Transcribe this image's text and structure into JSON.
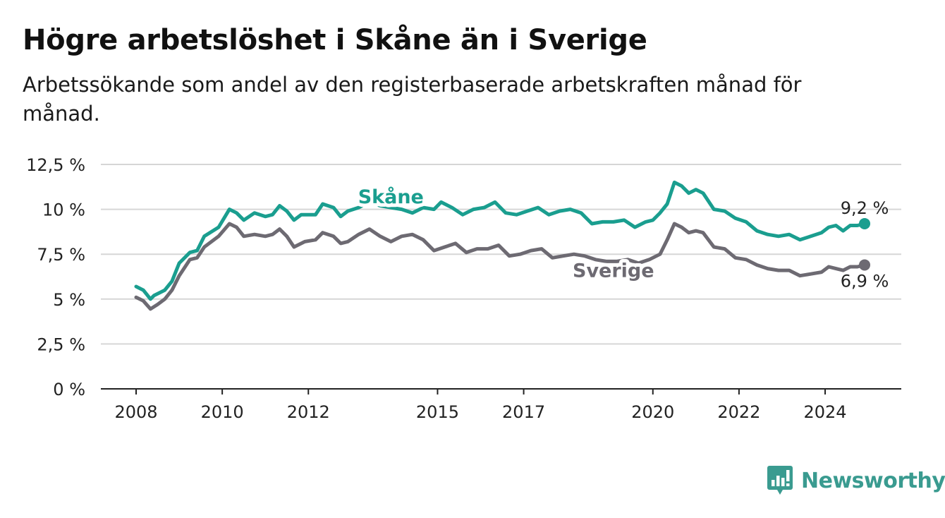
{
  "header": {
    "title": "Högre arbetslöshet i Skåne än i Sverige",
    "subtitle": "Arbetssökande som andel av den registerbaserade arbetskraften månad för månad."
  },
  "brand": {
    "name": "Newsworthy",
    "icon": "newsworthy-logo-icon",
    "color": "#3a9b90"
  },
  "chart_data": {
    "type": "line",
    "x_start": "2008-01",
    "x_end": "2024-12",
    "x_ticks": [
      2008,
      2010,
      2012,
      2015,
      2017,
      2020,
      2022,
      2024
    ],
    "x_tick_labels": [
      "2008",
      "2010",
      "2012",
      "2015",
      "2017",
      "2020",
      "2022",
      "2024"
    ],
    "ylim": [
      0,
      12.5
    ],
    "y_ticks": [
      0,
      2.5,
      5,
      7.5,
      10,
      12.5
    ],
    "y_tick_labels": [
      "0 %",
      "2,5 %",
      "5 %",
      "7,5 %",
      "10 %",
      "12,5 %"
    ],
    "grid": true,
    "series": [
      {
        "name": "Skåne",
        "color": "#1a9e8f",
        "end_label": "9,2 %",
        "points": [
          [
            "2008-01",
            5.7
          ],
          [
            "2008-03",
            5.5
          ],
          [
            "2008-05",
            5.0
          ],
          [
            "2008-06",
            5.2
          ],
          [
            "2008-09",
            5.5
          ],
          [
            "2008-11",
            6.0
          ],
          [
            "2009-01",
            7.0
          ],
          [
            "2009-04",
            7.6
          ],
          [
            "2009-06",
            7.7
          ],
          [
            "2009-08",
            8.5
          ],
          [
            "2009-12",
            9.0
          ],
          [
            "2010-03",
            10.0
          ],
          [
            "2010-05",
            9.8
          ],
          [
            "2010-07",
            9.4
          ],
          [
            "2010-10",
            9.8
          ],
          [
            "2011-01",
            9.6
          ],
          [
            "2011-03",
            9.7
          ],
          [
            "2011-05",
            10.2
          ],
          [
            "2011-07",
            9.9
          ],
          [
            "2011-09",
            9.4
          ],
          [
            "2011-11",
            9.7
          ],
          [
            "2012-03",
            9.7
          ],
          [
            "2012-05",
            10.3
          ],
          [
            "2012-08",
            10.1
          ],
          [
            "2012-10",
            9.6
          ],
          [
            "2012-12",
            9.9
          ],
          [
            "2013-03",
            10.1
          ],
          [
            "2013-06",
            10.4
          ],
          [
            "2013-09",
            10.2
          ],
          [
            "2013-12",
            10.1
          ],
          [
            "2014-03",
            10.0
          ],
          [
            "2014-06",
            9.8
          ],
          [
            "2014-09",
            10.1
          ],
          [
            "2014-12",
            10.0
          ],
          [
            "2015-02",
            10.4
          ],
          [
            "2015-05",
            10.1
          ],
          [
            "2015-08",
            9.7
          ],
          [
            "2015-11",
            10.0
          ],
          [
            "2016-02",
            10.1
          ],
          [
            "2016-05",
            10.4
          ],
          [
            "2016-08",
            9.8
          ],
          [
            "2016-11",
            9.7
          ],
          [
            "2017-02",
            9.9
          ],
          [
            "2017-05",
            10.1
          ],
          [
            "2017-08",
            9.7
          ],
          [
            "2017-11",
            9.9
          ],
          [
            "2018-02",
            10.0
          ],
          [
            "2018-05",
            9.8
          ],
          [
            "2018-08",
            9.2
          ],
          [
            "2018-11",
            9.3
          ],
          [
            "2019-02",
            9.3
          ],
          [
            "2019-05",
            9.4
          ],
          [
            "2019-08",
            9.0
          ],
          [
            "2019-11",
            9.3
          ],
          [
            "2020-01",
            9.4
          ],
          [
            "2020-03",
            9.8
          ],
          [
            "2020-05",
            10.3
          ],
          [
            "2020-07",
            11.5
          ],
          [
            "2020-09",
            11.3
          ],
          [
            "2020-11",
            10.9
          ],
          [
            "2021-01",
            11.1
          ],
          [
            "2021-03",
            10.9
          ],
          [
            "2021-06",
            10.0
          ],
          [
            "2021-09",
            9.9
          ],
          [
            "2021-12",
            9.5
          ],
          [
            "2022-03",
            9.3
          ],
          [
            "2022-06",
            8.8
          ],
          [
            "2022-09",
            8.6
          ],
          [
            "2022-12",
            8.5
          ],
          [
            "2023-03",
            8.6
          ],
          [
            "2023-06",
            8.3
          ],
          [
            "2023-09",
            8.5
          ],
          [
            "2023-12",
            8.7
          ],
          [
            "2024-02",
            9.0
          ],
          [
            "2024-04",
            9.1
          ],
          [
            "2024-06",
            8.8
          ],
          [
            "2024-08",
            9.1
          ],
          [
            "2024-10",
            9.1
          ],
          [
            "2024-12",
            9.2
          ]
        ]
      },
      {
        "name": "Sverige",
        "color": "#6d6a72",
        "end_label": "6,9 %",
        "points": [
          [
            "2008-01",
            5.1
          ],
          [
            "2008-03",
            4.9
          ],
          [
            "2008-05",
            4.45
          ],
          [
            "2008-07",
            4.7
          ],
          [
            "2008-09",
            5.0
          ],
          [
            "2008-11",
            5.5
          ],
          [
            "2009-01",
            6.3
          ],
          [
            "2009-04",
            7.2
          ],
          [
            "2009-06",
            7.3
          ],
          [
            "2009-08",
            7.9
          ],
          [
            "2009-12",
            8.5
          ],
          [
            "2010-03",
            9.2
          ],
          [
            "2010-05",
            9.0
          ],
          [
            "2010-07",
            8.5
          ],
          [
            "2010-10",
            8.6
          ],
          [
            "2011-01",
            8.5
          ],
          [
            "2011-03",
            8.6
          ],
          [
            "2011-05",
            8.9
          ],
          [
            "2011-07",
            8.5
          ],
          [
            "2011-09",
            7.9
          ],
          [
            "2011-12",
            8.2
          ],
          [
            "2012-03",
            8.3
          ],
          [
            "2012-05",
            8.7
          ],
          [
            "2012-08",
            8.5
          ],
          [
            "2012-10",
            8.1
          ],
          [
            "2012-12",
            8.2
          ],
          [
            "2013-03",
            8.6
          ],
          [
            "2013-06",
            8.9
          ],
          [
            "2013-09",
            8.5
          ],
          [
            "2013-12",
            8.2
          ],
          [
            "2014-03",
            8.5
          ],
          [
            "2014-06",
            8.6
          ],
          [
            "2014-09",
            8.3
          ],
          [
            "2014-12",
            7.7
          ],
          [
            "2015-03",
            7.9
          ],
          [
            "2015-06",
            8.1
          ],
          [
            "2015-09",
            7.6
          ],
          [
            "2015-12",
            7.8
          ],
          [
            "2016-03",
            7.8
          ],
          [
            "2016-06",
            8.0
          ],
          [
            "2016-09",
            7.4
          ],
          [
            "2016-12",
            7.5
          ],
          [
            "2017-03",
            7.7
          ],
          [
            "2017-06",
            7.8
          ],
          [
            "2017-09",
            7.3
          ],
          [
            "2017-12",
            7.4
          ],
          [
            "2018-03",
            7.5
          ],
          [
            "2018-06",
            7.4
          ],
          [
            "2018-09",
            7.2
          ],
          [
            "2018-12",
            7.1
          ],
          [
            "2019-03",
            7.1
          ],
          [
            "2019-06",
            7.2
          ],
          [
            "2019-09",
            7.0
          ],
          [
            "2019-12",
            7.2
          ],
          [
            "2020-03",
            7.5
          ],
          [
            "2020-05",
            8.3
          ],
          [
            "2020-07",
            9.2
          ],
          [
            "2020-09",
            9.0
          ],
          [
            "2020-11",
            8.7
          ],
          [
            "2021-01",
            8.8
          ],
          [
            "2021-03",
            8.7
          ],
          [
            "2021-06",
            7.9
          ],
          [
            "2021-09",
            7.8
          ],
          [
            "2021-12",
            7.3
          ],
          [
            "2022-03",
            7.2
          ],
          [
            "2022-06",
            6.9
          ],
          [
            "2022-09",
            6.7
          ],
          [
            "2022-12",
            6.6
          ],
          [
            "2023-03",
            6.6
          ],
          [
            "2023-06",
            6.3
          ],
          [
            "2023-09",
            6.4
          ],
          [
            "2023-12",
            6.5
          ],
          [
            "2024-02",
            6.8
          ],
          [
            "2024-04",
            6.7
          ],
          [
            "2024-06",
            6.6
          ],
          [
            "2024-08",
            6.8
          ],
          [
            "2024-10",
            6.8
          ],
          [
            "2024-12",
            6.9
          ]
        ]
      }
    ],
    "inline_labels": [
      {
        "series": "Skåne",
        "text": "Skåne",
        "at": [
          "2013-12",
          10.1
        ]
      },
      {
        "series": "Sverige",
        "text": "Sverige",
        "at": [
          "2019-02",
          7.1
        ]
      }
    ]
  }
}
